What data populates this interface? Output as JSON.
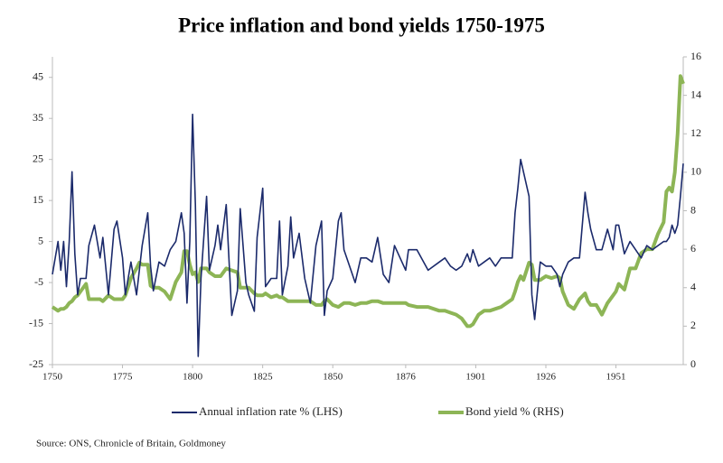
{
  "chart_data": {
    "type": "line",
    "title": "Price inflation and bond yields 1750-1975",
    "source": "Source: ONS, Chronicle of Britain, Goldmoney",
    "x": [
      1750,
      1752,
      1753,
      1754,
      1755,
      1756,
      1757,
      1758,
      1759,
      1760,
      1762,
      1763,
      1765,
      1767,
      1768,
      1770,
      1772,
      1773,
      1775,
      1776,
      1778,
      1780,
      1781,
      1782,
      1784,
      1785,
      1786,
      1788,
      1790,
      1792,
      1794,
      1796,
      1797,
      1798,
      1799,
      1800,
      1801,
      1802,
      1803,
      1805,
      1806,
      1808,
      1809,
      1810,
      1812,
      1814,
      1816,
      1817,
      1819,
      1820,
      1822,
      1823,
      1825,
      1826,
      1828,
      1830,
      1831,
      1832,
      1834,
      1835,
      1836,
      1838,
      1840,
      1842,
      1844,
      1846,
      1847,
      1848,
      1850,
      1852,
      1853,
      1854,
      1856,
      1858,
      1860,
      1862,
      1864,
      1866,
      1868,
      1870,
      1872,
      1876,
      1877,
      1880,
      1884,
      1888,
      1890,
      1892,
      1894,
      1896,
      1898,
      1899,
      1900,
      1902,
      1904,
      1906,
      1908,
      1910,
      1912,
      1914,
      1915,
      1916,
      1917,
      1918,
      1920,
      1921,
      1922,
      1924,
      1926,
      1928,
      1930,
      1931,
      1932,
      1934,
      1936,
      1938,
      1940,
      1941,
      1942,
      1944,
      1946,
      1948,
      1950,
      1951,
      1952,
      1954,
      1956,
      1958,
      1960,
      1962,
      1964,
      1966,
      1968,
      1969,
      1970,
      1971,
      1972,
      1973,
      1974,
      1975
    ],
    "series": [
      {
        "name": "Annual inflation rate % (LHS)",
        "color": "#1b2a6b",
        "axis": "y",
        "values": [
          -3,
          5,
          -2,
          5,
          -6,
          5,
          22,
          2,
          -8,
          -4,
          -4,
          4,
          9,
          1,
          6,
          -8,
          8,
          10,
          1,
          -8,
          0,
          -8,
          -2,
          4,
          12,
          -1,
          -7,
          0,
          -1,
          3,
          5,
          12,
          7,
          -10,
          5,
          36,
          14,
          -23,
          -4,
          16,
          -2,
          4,
          9,
          3,
          14,
          -13,
          -7,
          13,
          -5,
          -8,
          -12,
          6,
          18,
          -6,
          -4,
          -4,
          10,
          -8,
          -1,
          11,
          1,
          7,
          -4,
          -10,
          4,
          10,
          -13,
          -7,
          -4,
          10,
          12,
          3,
          -1,
          -5,
          1,
          1,
          0,
          6,
          -3,
          -5,
          4,
          -2,
          3,
          3,
          -2,
          0,
          1,
          -1,
          -2,
          -1,
          2,
          0,
          3,
          -1,
          0,
          1,
          -1,
          1,
          1,
          1,
          12,
          18,
          25,
          22,
          16,
          -8,
          -14,
          0,
          -1,
          -1,
          -3,
          -6,
          -3,
          0,
          1,
          1,
          17,
          12,
          8,
          3,
          3,
          8,
          3,
          9,
          9,
          2,
          5,
          3,
          1,
          4,
          3,
          4,
          5,
          5,
          6,
          9,
          7,
          9,
          16,
          24
        ]
      },
      {
        "name": "Bond yield % (RHS)",
        "color": "#8db556",
        "axis": "y2",
        "values": [
          3.0,
          2.8,
          2.9,
          2.9,
          3.0,
          3.2,
          3.3,
          3.5,
          3.6,
          3.8,
          4.2,
          3.4,
          3.4,
          3.4,
          3.3,
          3.6,
          3.4,
          3.4,
          3.4,
          3.6,
          4.5,
          5.0,
          5.3,
          5.2,
          5.2,
          4.1,
          4.0,
          4.0,
          3.8,
          3.4,
          4.3,
          4.8,
          5.9,
          5.9,
          5.2,
          4.7,
          4.8,
          4.3,
          5.0,
          5.0,
          4.8,
          4.6,
          4.6,
          4.6,
          5.0,
          4.9,
          4.8,
          4.0,
          4.0,
          4.0,
          3.7,
          3.6,
          3.6,
          3.7,
          3.5,
          3.6,
          3.5,
          3.5,
          3.3,
          3.3,
          3.3,
          3.3,
          3.3,
          3.3,
          3.1,
          3.1,
          3.3,
          3.4,
          3.1,
          3.0,
          3.1,
          3.2,
          3.2,
          3.1,
          3.2,
          3.2,
          3.3,
          3.3,
          3.2,
          3.2,
          3.2,
          3.2,
          3.1,
          3.0,
          3.0,
          2.8,
          2.8,
          2.7,
          2.6,
          2.4,
          2.0,
          2.0,
          2.1,
          2.6,
          2.8,
          2.8,
          2.9,
          3.0,
          3.2,
          3.4,
          3.8,
          4.3,
          4.6,
          4.4,
          5.3,
          5.2,
          4.4,
          4.4,
          4.6,
          4.5,
          4.6,
          4.5,
          3.8,
          3.1,
          2.9,
          3.4,
          3.7,
          3.3,
          3.1,
          3.1,
          2.6,
          3.2,
          3.6,
          3.8,
          4.2,
          3.9,
          5.0,
          5.0,
          5.8,
          6.0,
          6.0,
          6.8,
          7.4,
          9.0,
          9.2,
          9.0,
          10.0,
          12.0,
          15.0,
          14.6
        ]
      }
    ],
    "xlim": [
      1750,
      1975
    ],
    "xticks": [
      1750,
      1775,
      1800,
      1825,
      1850,
      1876,
      1901,
      1926,
      1951
    ],
    "ylim": [
      -25,
      50
    ],
    "yticks": [
      -25,
      -15,
      -5,
      5,
      15,
      25,
      35,
      45
    ],
    "y2lim": [
      0,
      16
    ],
    "y2ticks": [
      0,
      2,
      4,
      6,
      8,
      10,
      12,
      14,
      16
    ],
    "legend": "bottom"
  }
}
